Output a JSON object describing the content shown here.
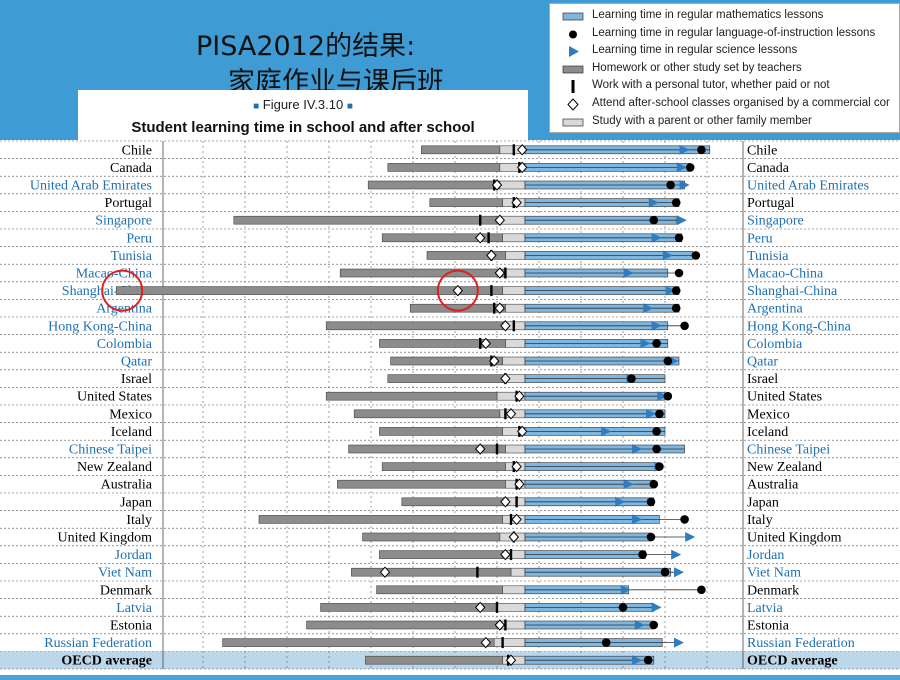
{
  "slide": {
    "title_line1": "PISA2012的结果:",
    "title_line2": "家庭作业与课后班"
  },
  "figure": {
    "number_label": "Figure IV.3.10",
    "title": "Student learning time in school and after school"
  },
  "legend": [
    {
      "symbol": "bar-blue",
      "label": "Learning time in regular mathematics lessons"
    },
    {
      "symbol": "dot-black",
      "label": "Learning time in regular language-of-instruction lessons"
    },
    {
      "symbol": "triangle-blue",
      "label": "Learning time in regular science lessons"
    },
    {
      "symbol": "bar-gray",
      "label": "Homework or other study set by teachers"
    },
    {
      "symbol": "tick-black",
      "label": "Work with a personal tutor, whether paid or not"
    },
    {
      "symbol": "diamond-open",
      "label": "Attend after-school classes organised by a commercial cor"
    },
    {
      "symbol": "bar-lightgray",
      "label": "Study with a parent or other family member"
    }
  ],
  "colors": {
    "math_bar": "#7fb6e0",
    "science_marker": "#2f7cc0",
    "homework_bar": "#8c8c8c",
    "family_bar": "#d9d9d9",
    "country_black": "#000000",
    "country_blue": "#1f6fb2",
    "highlight_circle": "#e02020"
  },
  "chart_data": {
    "type": "bar",
    "orientation": "horizontal",
    "grid": true,
    "description_units": "hours per week (no axis printed)",
    "categories": [
      {
        "name": "Chile",
        "blue": false,
        "homework": 2.8,
        "family": 0.9,
        "tutor": 0.4,
        "afterschool": 0.1,
        "math": 6.6,
        "language": 6.3,
        "science": 5.7
      },
      {
        "name": "Canada",
        "blue": false,
        "homework": 4.0,
        "family": 0.9,
        "tutor": 0.2,
        "afterschool": 0.1,
        "math": 5.9,
        "language": 5.9,
        "science": 5.6
      },
      {
        "name": "United Arab Emirates",
        "blue": true,
        "homework": 4.7,
        "family": 0.9,
        "tutor": 1.1,
        "afterschool": 1.0,
        "math": 5.7,
        "language": 5.2,
        "science": 5.7
      },
      {
        "name": "Portugal",
        "blue": false,
        "homework": 2.6,
        "family": 0.8,
        "tutor": 0.4,
        "afterschool": 0.3,
        "math": 5.5,
        "language": 5.4,
        "science": 4.6
      },
      {
        "name": "Singapore",
        "blue": true,
        "homework": 9.4,
        "family": 1.0,
        "tutor": 1.6,
        "afterschool": 0.9,
        "math": 5.4,
        "language": 4.6,
        "science": 5.6
      },
      {
        "name": "Peru",
        "blue": true,
        "homework": 4.3,
        "family": 0.8,
        "tutor": 1.3,
        "afterschool": 1.6,
        "math": 5.6,
        "language": 5.5,
        "science": 4.7
      },
      {
        "name": "Tunisia",
        "blue": true,
        "homework": 2.8,
        "family": 0.7,
        "tutor": 1.2,
        "afterschool": 1.2,
        "math": 6.0,
        "language": 6.1,
        "science": 5.1
      },
      {
        "name": "Macao-China",
        "blue": true,
        "homework": 5.9,
        "family": 0.7,
        "tutor": 0.7,
        "afterschool": 0.9,
        "math": 5.1,
        "language": 5.5,
        "science": 3.7
      },
      {
        "name": "Shanghai-China",
        "blue": true,
        "homework": 13.8,
        "family": 0.8,
        "tutor": 1.2,
        "afterschool": 2.4,
        "math": 5.5,
        "language": 5.4,
        "science": 5.2
      },
      {
        "name": "Argentina",
        "blue": true,
        "homework": 3.4,
        "family": 0.7,
        "tutor": 1.1,
        "afterschool": 0.9,
        "math": 5.5,
        "language": 5.4,
        "science": 4.4
      },
      {
        "name": "Hong Kong-China",
        "blue": true,
        "homework": 6.3,
        "family": 0.8,
        "tutor": 0.4,
        "afterschool": 0.7,
        "math": 5.1,
        "language": 5.7,
        "science": 4.7
      },
      {
        "name": "Colombia",
        "blue": true,
        "homework": 4.5,
        "family": 0.7,
        "tutor": 1.6,
        "afterschool": 1.4,
        "math": 5.1,
        "language": 4.7,
        "science": 4.3
      },
      {
        "name": "Qatar",
        "blue": true,
        "homework": 4.0,
        "family": 0.8,
        "tutor": 1.2,
        "afterschool": 1.1,
        "math": 5.5,
        "language": 5.1,
        "science": 5.3
      },
      {
        "name": "Israel",
        "blue": false,
        "homework": 4.2,
        "family": 0.7,
        "tutor": 0.7,
        "afterschool": 0.7,
        "math": 5.0,
        "language": 3.8,
        "science": 3.8
      },
      {
        "name": "United States",
        "blue": false,
        "homework": 6.1,
        "family": 1.0,
        "tutor": 0.3,
        "afterschool": 0.2,
        "math": 5.0,
        "language": 5.1,
        "science": 4.9
      },
      {
        "name": "Mexico",
        "blue": false,
        "homework": 5.2,
        "family": 0.9,
        "tutor": 0.7,
        "afterschool": 0.5,
        "math": 5.0,
        "language": 4.8,
        "science": 4.5
      },
      {
        "name": "Iceland",
        "blue": false,
        "homework": 4.4,
        "family": 0.8,
        "tutor": 0.2,
        "afterschool": 0.1,
        "math": 5.0,
        "language": 4.7,
        "science": 2.9
      },
      {
        "name": "Chinese Taipei",
        "blue": true,
        "homework": 5.6,
        "family": 0.7,
        "tutor": 1.0,
        "afterschool": 1.6,
        "math": 5.7,
        "language": 4.7,
        "science": 4.0
      },
      {
        "name": "New Zealand",
        "blue": false,
        "homework": 4.4,
        "family": 0.7,
        "tutor": 0.4,
        "afterschool": 0.3,
        "math": 4.8,
        "language": 4.8,
        "science": 4.8
      },
      {
        "name": "Australia",
        "blue": false,
        "homework": 6.0,
        "family": 0.7,
        "tutor": 0.3,
        "afterschool": 0.2,
        "math": 4.6,
        "language": 4.6,
        "science": 3.7
      },
      {
        "name": "Japan",
        "blue": false,
        "homework": 3.8,
        "family": 0.6,
        "tutor": 0.3,
        "afterschool": 0.7,
        "math": 4.6,
        "language": 4.5,
        "science": 3.4
      },
      {
        "name": "Italy",
        "blue": false,
        "homework": 8.7,
        "family": 0.8,
        "tutor": 0.5,
        "afterschool": 0.3,
        "math": 4.8,
        "language": 5.7,
        "science": 4.0
      },
      {
        "name": "United Kingdom",
        "blue": false,
        "homework": 4.9,
        "family": 0.9,
        "tutor": 0.4,
        "afterschool": 0.4,
        "math": 4.5,
        "language": 4.5,
        "science": 5.9
      },
      {
        "name": "Jordan",
        "blue": true,
        "homework": 4.4,
        "family": 0.8,
        "tutor": 0.5,
        "afterschool": 0.7,
        "math": 4.3,
        "language": 4.2,
        "science": 5.4
      },
      {
        "name": "Viet Nam",
        "blue": true,
        "homework": 5.7,
        "family": 0.5,
        "tutor": 1.7,
        "afterschool": 5.0,
        "math": 5.2,
        "language": 5.0,
        "science": 5.5
      },
      {
        "name": "Denmark",
        "blue": false,
        "homework": 4.5,
        "family": 0.8,
        "tutor": 0.0,
        "afterschool": 0.0,
        "math": 3.7,
        "language": 6.3,
        "science": 3.6
      },
      {
        "name": "Latvia",
        "blue": true,
        "homework": 6.3,
        "family": 1.0,
        "tutor": 1.0,
        "afterschool": 1.6,
        "math": 4.6,
        "language": 3.5,
        "science": 4.7
      },
      {
        "name": "Estonia",
        "blue": false,
        "homework": 6.8,
        "family": 1.0,
        "tutor": 0.7,
        "afterschool": 0.9,
        "math": 4.6,
        "language": 4.6,
        "science": 4.1
      },
      {
        "name": "Russian Federation",
        "blue": true,
        "homework": 9.7,
        "family": 1.1,
        "tutor": 0.8,
        "afterschool": 1.4,
        "math": 4.9,
        "language": 2.9,
        "science": 5.5
      },
      {
        "name": "OECD average",
        "blue": false,
        "bold": true,
        "homework": 4.9,
        "family": 0.8,
        "tutor": 0.6,
        "afterschool": 0.5,
        "math": 4.6,
        "language": 4.4,
        "science": 4.0
      }
    ],
    "highlighted": [
      "Shanghai-China homework",
      "Shanghai-China after-school classes"
    ]
  }
}
